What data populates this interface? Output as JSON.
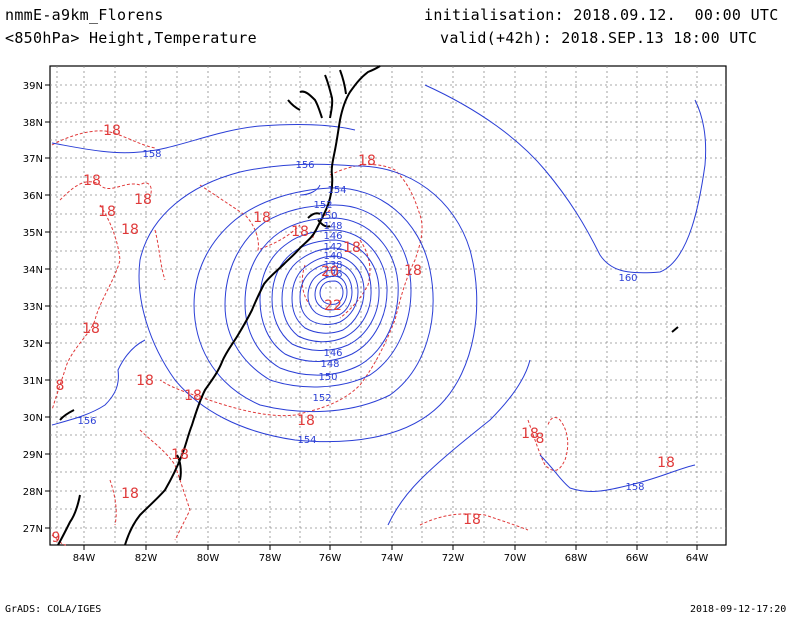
{
  "header": {
    "model": "nmmE-a9km_Florens",
    "field": "<850hPa> Height,Temperature",
    "init": "initialisation: 2018.09.12.  00:00 UTC",
    "valid": "valid(+42h): 2018.SEP.13 18:00 UTC"
  },
  "footer": {
    "left": "GrADS: COLA/IGES",
    "right": "2018-09-12-17:20"
  },
  "map": {
    "lat_labels": [
      "39N",
      "38N",
      "37N",
      "36N",
      "35N",
      "34N",
      "33N",
      "32N",
      "31N",
      "30N",
      "29N",
      "28N",
      "27N"
    ],
    "lon_labels": [
      "84W",
      "82W",
      "80W",
      "78W",
      "76W",
      "74W",
      "72W",
      "70W",
      "68W",
      "66W",
      "64W"
    ],
    "height_contour_labels": [
      "158",
      "156",
      "154",
      "152",
      "150",
      "148",
      "146",
      "142",
      "140",
      "138",
      "136",
      "160",
      "156",
      "154",
      "152",
      "150",
      "148",
      "146",
      "158"
    ],
    "temp_contour_labels": [
      "18",
      "18",
      "18",
      "18",
      "18",
      "18",
      "18",
      "18",
      "18",
      "18",
      "18",
      "18",
      "18",
      "18",
      "18",
      "18",
      "18",
      "18",
      "20",
      "22",
      "8",
      "9",
      "8",
      "18"
    ],
    "colors": {
      "height": "#2b3fd6",
      "temperature": "#e03a3a",
      "coast": "#000000",
      "grid": "#8c8c8c"
    }
  }
}
